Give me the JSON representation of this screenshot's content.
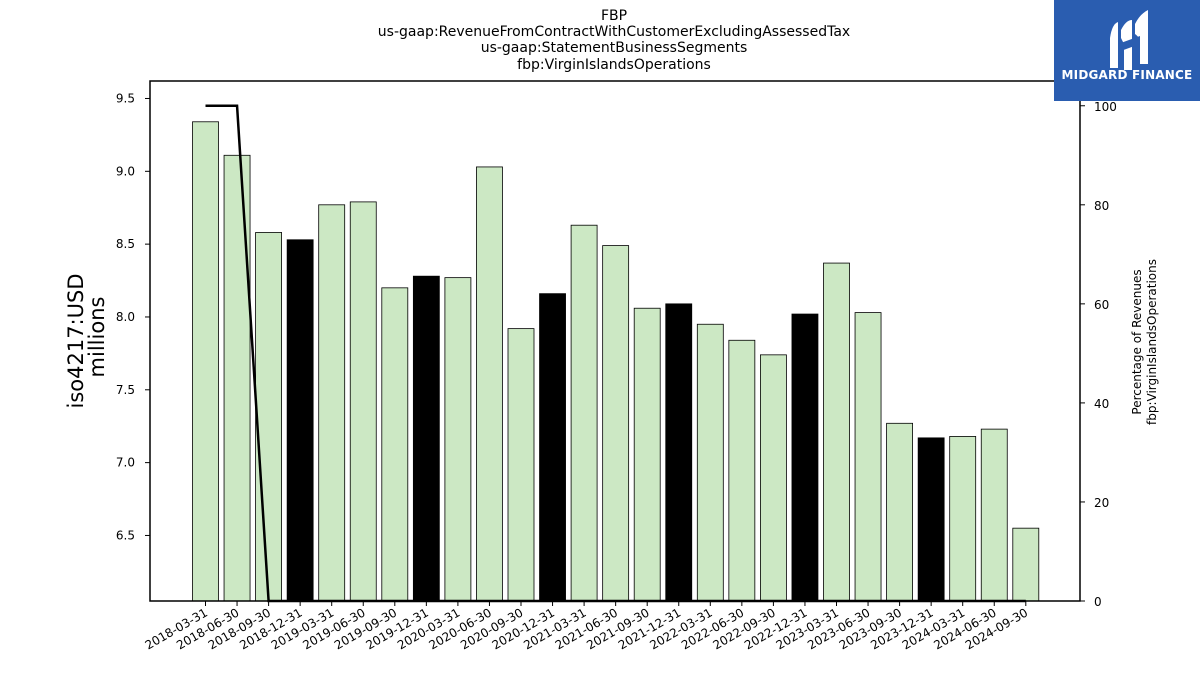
{
  "logo": {
    "name": "MIDGARD FINANCE"
  },
  "chart_data": {
    "type": "bar",
    "title": [
      "FBP",
      "us-gaap:RevenueFromContractWithCustomerExcludingAssessedTax",
      "us-gaap:StatementBusinessSegments",
      "fbp:VirginIslandsOperations"
    ],
    "ylabel": [
      "iso4217:USD",
      "millions"
    ],
    "ylabel_right": [
      "Percentage of Revenues",
      "fbp:VirginIslandsOperations"
    ],
    "categories": [
      "2018-03-31",
      "2018-06-30",
      "2018-09-30",
      "2018-12-31",
      "2019-03-31",
      "2019-06-30",
      "2019-09-30",
      "2019-12-31",
      "2020-03-31",
      "2020-06-30",
      "2020-09-30",
      "2020-12-31",
      "2021-03-31",
      "2021-06-30",
      "2021-09-30",
      "2021-12-31",
      "2022-03-31",
      "2022-06-30",
      "2022-09-30",
      "2022-12-31",
      "2023-03-31",
      "2023-06-30",
      "2023-09-30",
      "2023-12-31",
      "2024-03-31",
      "2024-06-30",
      "2024-09-30"
    ],
    "series": [
      {
        "values": [
          9.34,
          9.11,
          8.58,
          8.53,
          8.77,
          8.79,
          8.2,
          8.28,
          8.27,
          9.03,
          7.92,
          8.16,
          8.63,
          8.49,
          8.06,
          8.09,
          7.95,
          7.84,
          7.74,
          8.02,
          8.37,
          8.03,
          7.27,
          7.17,
          7.18,
          7.23,
          6.55
        ]
      },
      {
        "axis": "right",
        "type": "line",
        "values": [
          100,
          100,
          0,
          0,
          0,
          0,
          0,
          0,
          0,
          0,
          0,
          0,
          0,
          0,
          0,
          0,
          0,
          0,
          0,
          0,
          0,
          0,
          0,
          0,
          0,
          0,
          0
        ]
      }
    ],
    "highlighted_categories": [
      "2018-12-31",
      "2019-12-31",
      "2020-12-31",
      "2021-12-31",
      "2022-12-31",
      "2023-12-31"
    ],
    "ylim": [
      6.05,
      9.62
    ],
    "yticks": [
      6.5,
      7.0,
      7.5,
      8.0,
      8.5,
      9.0,
      9.5
    ],
    "ylim_right": [
      0,
      105
    ],
    "yticks_right": [
      0,
      20,
      40,
      60,
      80,
      100
    ],
    "colors": {
      "bar": "#cce8c4",
      "bar_highlight": "#000000",
      "line": "#000000"
    }
  }
}
